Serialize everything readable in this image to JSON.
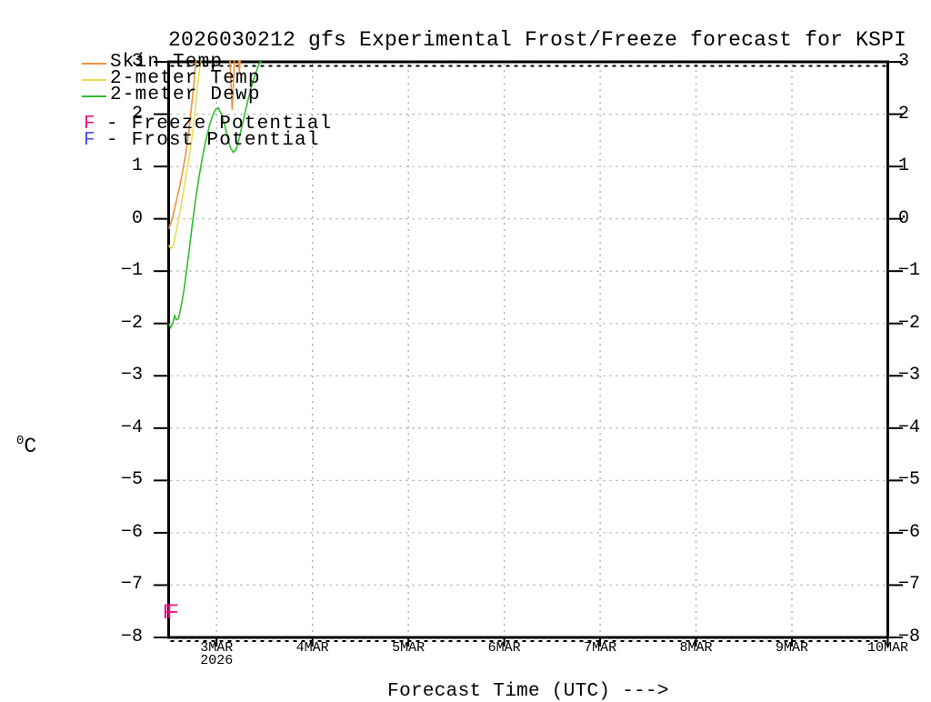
{
  "title": "2026030212 gfs Experimental Frost/Freeze forecast for KSPI",
  "y_axis": {
    "unit_sup": "0",
    "unit_letter": "C",
    "ticks": [
      {
        "value": 3,
        "label": "3"
      },
      {
        "value": 2,
        "label": "2"
      },
      {
        "value": 1,
        "label": "1"
      },
      {
        "value": 0,
        "label": "0"
      },
      {
        "value": -1,
        "label": "−1"
      },
      {
        "value": -2,
        "label": "−2"
      },
      {
        "value": -3,
        "label": "−3"
      },
      {
        "value": -4,
        "label": "−4"
      },
      {
        "value": -5,
        "label": "−5"
      },
      {
        "value": -6,
        "label": "−6"
      },
      {
        "value": -7,
        "label": "−7"
      },
      {
        "value": -8,
        "label": "−8"
      }
    ]
  },
  "x_axis": {
    "label": "Forecast Time (UTC) --->",
    "ticks": [
      {
        "hour": 12,
        "label": "3MAR",
        "sublabel": "2026"
      },
      {
        "hour": 36,
        "label": "4MAR"
      },
      {
        "hour": 60,
        "label": "5MAR"
      },
      {
        "hour": 84,
        "label": "6MAR"
      },
      {
        "hour": 108,
        "label": "7MAR"
      },
      {
        "hour": 132,
        "label": "8MAR"
      },
      {
        "hour": 156,
        "label": "9MAR"
      },
      {
        "hour": 180,
        "label": "10MAR"
      }
    ]
  },
  "legend": {
    "series": [
      {
        "label": "Skin Temp",
        "color": "#ef9240"
      },
      {
        "label": "2-meter Temp",
        "color": "#e8de52"
      },
      {
        "label": "2-meter Dewp",
        "color": "#2fbe2f"
      }
    ],
    "markers": [
      {
        "symbol": "F",
        "color": "#ed1380",
        "label": "- Freeze Potential"
      },
      {
        "symbol": "F",
        "color": "#4450e6",
        "label": "- Frost Potential"
      }
    ]
  },
  "colors": {
    "grid": "#aaaaaa",
    "axis": "#000000"
  },
  "chart_data": {
    "type": "line",
    "title": "2026030212 gfs Experimental Frost/Freeze forecast for KSPI",
    "xlabel": "Forecast Time (UTC)",
    "ylabel": "degrees C",
    "x_range_hours": [
      0,
      180
    ],
    "ylim": [
      -8,
      3
    ],
    "grid": "dotted",
    "legend_position": "top-left",
    "series": [
      {
        "name": "Skin Temp",
        "color": "#ef9240",
        "segments": [
          [
            [
              0,
              -0.2
            ],
            [
              0.9,
              0.0
            ],
            [
              1.8,
              0.3
            ],
            [
              2.7,
              0.6
            ],
            [
              3.6,
              0.95
            ],
            [
              4.4,
              1.3
            ],
            [
              5.1,
              1.7
            ],
            [
              5.8,
              2.2
            ],
            [
              6.4,
              2.65
            ],
            [
              7.0,
              3.15
            ]
          ],
          [
            [
              15.3,
              3.15
            ],
            [
              15.6,
              2.6
            ],
            [
              15.9,
              2.08
            ],
            [
              16.2,
              2.55
            ],
            [
              16.5,
              3.15
            ]
          ],
          [
            [
              17.4,
              3.15
            ],
            [
              17.7,
              2.8
            ],
            [
              18.0,
              3.15
            ]
          ]
        ]
      },
      {
        "name": "2-meter Temp",
        "color": "#e8de52",
        "segments": [
          [
            [
              0,
              -0.5
            ],
            [
              0.6,
              -0.57
            ],
            [
              1.2,
              -0.5
            ],
            [
              1.9,
              -0.25
            ],
            [
              2.5,
              0.0
            ],
            [
              3.2,
              0.3
            ],
            [
              3.9,
              0.62
            ],
            [
              4.6,
              0.92
            ],
            [
              5.3,
              1.25
            ],
            [
              6.0,
              1.65
            ],
            [
              6.6,
              2.05
            ],
            [
              7.2,
              2.5
            ],
            [
              7.8,
              2.9
            ],
            [
              8.3,
              3.15
            ]
          ]
        ]
      },
      {
        "name": "2-meter Dewp",
        "color": "#2fbe2f",
        "segments": [
          [
            [
              0,
              -2.0
            ],
            [
              0.5,
              -2.08
            ],
            [
              1.0,
              -2.0
            ],
            [
              1.5,
              -1.85
            ],
            [
              1.9,
              -1.93
            ],
            [
              2.5,
              -1.9
            ],
            [
              3.1,
              -1.68
            ],
            [
              3.8,
              -1.38
            ],
            [
              4.5,
              -0.98
            ],
            [
              5.2,
              -0.55
            ],
            [
              6.0,
              -0.05
            ],
            [
              6.8,
              0.4
            ],
            [
              7.6,
              0.8
            ],
            [
              8.4,
              1.15
            ],
            [
              9.3,
              1.5
            ],
            [
              10.2,
              1.78
            ],
            [
              11.0,
              1.97
            ],
            [
              11.8,
              2.1
            ],
            [
              12.4,
              2.12
            ],
            [
              13.2,
              2.0
            ],
            [
              14.0,
              1.8
            ],
            [
              14.8,
              1.55
            ],
            [
              15.5,
              1.35
            ],
            [
              16.2,
              1.27
            ],
            [
              16.9,
              1.33
            ],
            [
              17.6,
              1.52
            ],
            [
              18.3,
              1.75
            ],
            [
              19.1,
              2.02
            ],
            [
              19.9,
              2.28
            ],
            [
              20.7,
              2.52
            ],
            [
              21.5,
              2.72
            ],
            [
              22.3,
              2.9
            ],
            [
              23.1,
              3.02
            ],
            [
              23.7,
              3.15
            ]
          ]
        ]
      }
    ],
    "freeze_markers": [
      {
        "hour": 0,
        "temp_c": -7.5,
        "symbol": "F"
      },
      {
        "hour": 1,
        "temp_c": -7.5,
        "symbol": "F"
      }
    ],
    "frost_markers": []
  }
}
